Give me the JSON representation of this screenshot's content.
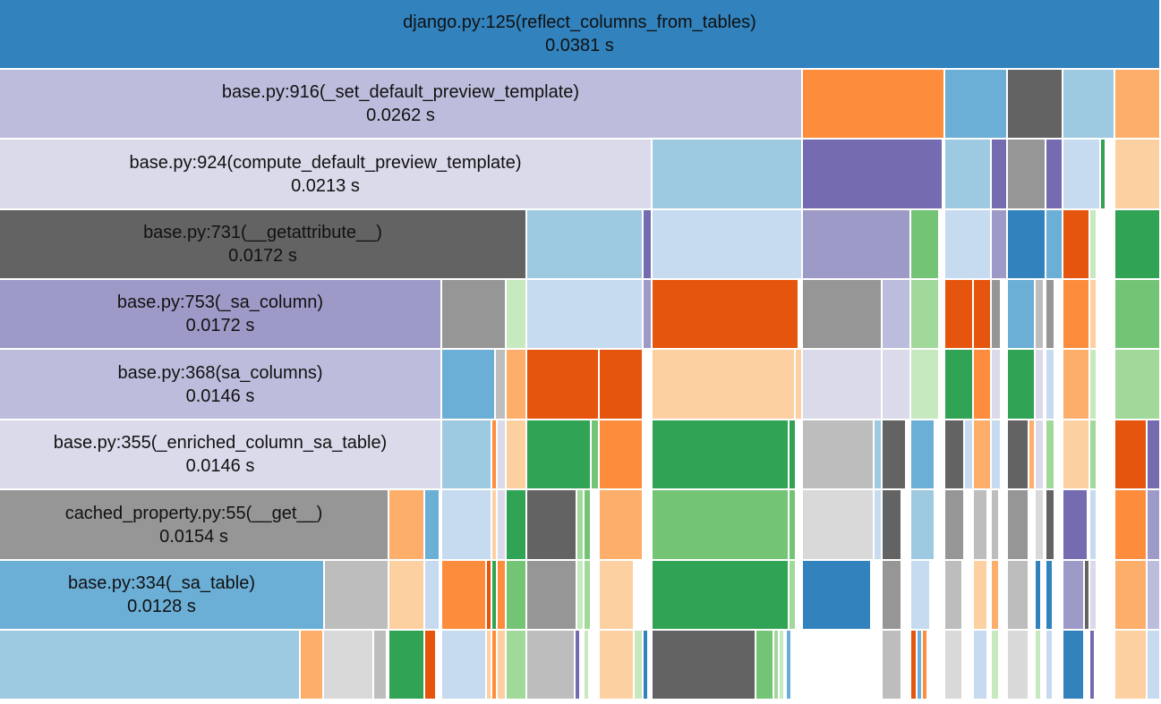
{
  "profile": {
    "frames": [
      {
        "name": "django.py:125(reflect_columns_from_tables)",
        "time": "0.0381 s",
        "color": "#3182bd"
      },
      {
        "name": "base.py:916(_set_default_preview_template)",
        "time": "0.0262 s",
        "color": "#bcbddc"
      },
      {
        "name": "base.py:924(compute_default_preview_template)",
        "time": "0.0213 s",
        "color": "#dadaeb"
      },
      {
        "name": "base.py:731(__getattribute__)",
        "time": "0.0172 s",
        "color": "#636363"
      },
      {
        "name": "base.py:753(_sa_column)",
        "time": "0.0172 s",
        "color": "#9e9ac8"
      },
      {
        "name": "base.py:368(sa_columns)",
        "time": "0.0146 s",
        "color": "#bcbddc"
      },
      {
        "name": "base.py:355(_enriched_column_sa_table)",
        "time": "0.0146 s",
        "color": "#dadaeb"
      },
      {
        "name": "cached_property.py:55(__get__)",
        "time": "0.0154 s",
        "color": "#969696"
      },
      {
        "name": "base.py:334(_sa_table)",
        "time": "0.0128 s",
        "color": "#6baed6"
      }
    ]
  }
}
